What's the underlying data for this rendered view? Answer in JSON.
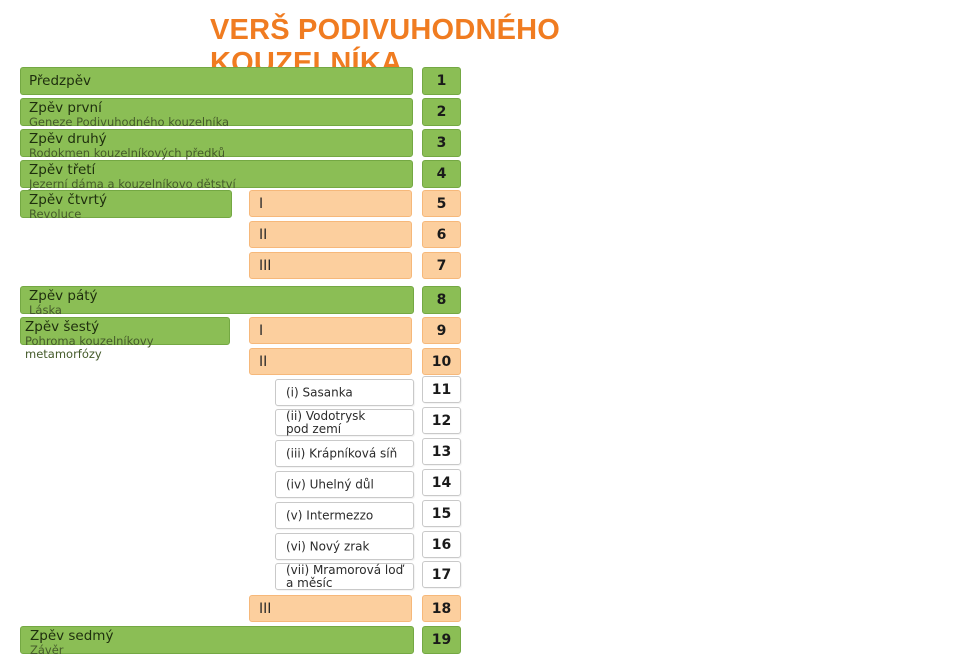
{
  "title": "VERŠ PODIVUHODNÉHO KOUZELNÍKA",
  "cantos": [
    {
      "name": "Předzpěv",
      "sub": ""
    },
    {
      "name": "Zpěv první",
      "sub": "Geneze Podivuhodného kouzelníka"
    },
    {
      "name": "Zpěv druhý",
      "sub": "Rodokmen kouzelníkových předků"
    },
    {
      "name": "Zpěv třetí",
      "sub": "Jezerní dáma a kouzelníkovo dětství"
    },
    {
      "name": "Zpěv čtvrtý",
      "sub": "Revoluce"
    },
    {
      "name": "Zpěv pátý",
      "sub": "Láska"
    },
    {
      "name": "Zpěv šestý",
      "sub": "Pohroma kouzelníkovy metamorfózy"
    },
    {
      "name": "Zpěv sedmý",
      "sub": "Závěr"
    }
  ],
  "parts": {
    "canto4": [
      "I",
      "II",
      "III"
    ],
    "canto6": [
      "I",
      "II",
      "III"
    ]
  },
  "subparts": [
    "(i) Sasanka",
    "(ii) Vodotrysk pod zemí",
    "(iii) Krápníková síň",
    "(iv) Uhelný důl",
    "(v) Intermezzo",
    "(vi) Nový zrak",
    "(vii) Mramorová loď a měsíc"
  ],
  "numbers": [
    "1",
    "2",
    "3",
    "4",
    "5",
    "6",
    "7",
    "8",
    "9",
    "10",
    "11",
    "12",
    "13",
    "14",
    "15",
    "16",
    "17",
    "18",
    "19"
  ],
  "colors": {
    "title": "#F07C21",
    "canto": "#8BBE55",
    "part": "#FCCF9E",
    "subpart": "#FFFFFF"
  }
}
